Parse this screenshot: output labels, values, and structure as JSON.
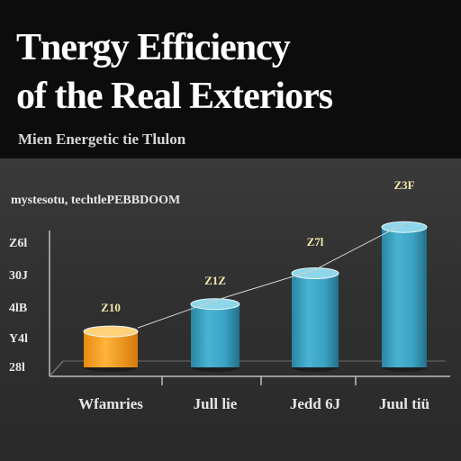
{
  "header": {
    "title_line1": "Tnergy Efficiency",
    "title_line2": "of the Real Exteriors",
    "subtitle": "Mien Energetic tie Tlulon"
  },
  "colors": {
    "header_bg": "#0c0c0c",
    "panel_bg": "#333333",
    "bar_orange": "#f6a21e",
    "bar_teal": "#3fa9c9",
    "trend_line": "#cfcfcf",
    "text_light": "#e6e6e6",
    "value_label": "#f2e7b0"
  },
  "chart_data": {
    "type": "bar",
    "legend": "mystesotu, techtlePEBBDOOM",
    "categories": [
      "Wfamries",
      "Jull lie",
      "Jedd 6J",
      "Juul tiü"
    ],
    "ytick_labels": [
      "Z6l",
      "30J",
      "4lB",
      "Y4l",
      "28l"
    ],
    "ylim": [
      0,
      5.4
    ],
    "grid": false,
    "trend_line": true,
    "series": [
      {
        "values": [
          1.05,
          1.85,
          2.75,
          4.1
        ],
        "labels": [
          "Z10",
          "Z1Z",
          "Z7l",
          "Z3F"
        ],
        "colors": [
          "#f6a21e",
          "#3fa9c9",
          "#3fa9c9",
          "#3fa9c9"
        ]
      }
    ]
  }
}
